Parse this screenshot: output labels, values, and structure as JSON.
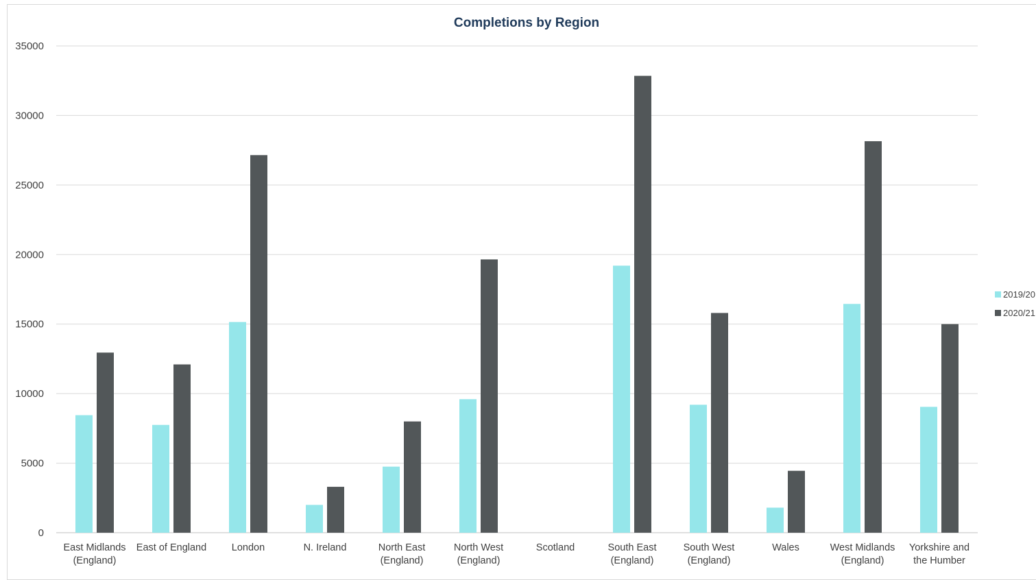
{
  "chart_data": {
    "type": "bar",
    "title": "Completions by Region",
    "xlabel": "",
    "ylabel": "",
    "ylim": [
      0,
      35000
    ],
    "yticks": [
      0,
      5000,
      10000,
      15000,
      20000,
      25000,
      30000,
      35000
    ],
    "grid": true,
    "legend_position": "right",
    "categories": [
      [
        "East Midlands",
        "(England)"
      ],
      [
        "East of England"
      ],
      [
        "London"
      ],
      [
        "N. Ireland"
      ],
      [
        "North East",
        "(England)"
      ],
      [
        "North West",
        "(England)"
      ],
      [
        "Scotland"
      ],
      [
        "South East",
        "(England)"
      ],
      [
        "South West",
        "(England)"
      ],
      [
        "Wales"
      ],
      [
        "West Midlands",
        "(England)"
      ],
      [
        "Yorkshire and",
        "the Humber"
      ]
    ],
    "series": [
      {
        "name": "2019/20",
        "color": "#95e6ea",
        "values": [
          8450,
          7750,
          15150,
          2000,
          4750,
          9600,
          0,
          19200,
          9200,
          1800,
          16450,
          9050
        ]
      },
      {
        "name": "2020/21",
        "color": "#525759",
        "values": [
          12950,
          12100,
          27150,
          3300,
          8000,
          19650,
          0,
          32850,
          15800,
          4450,
          28150,
          15000
        ]
      }
    ]
  }
}
